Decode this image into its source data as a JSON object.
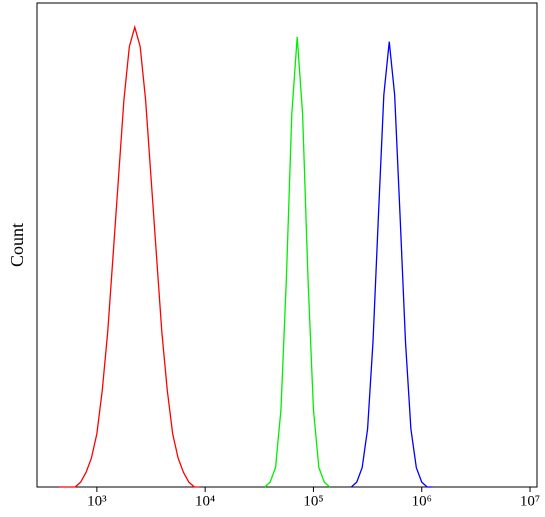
{
  "chart_data": {
    "type": "line",
    "y_label": "Count",
    "x_log": true,
    "xlim": [
      280,
      11600000
    ],
    "ylim": [
      0,
      100
    ],
    "xticks": [
      {
        "value": 1000,
        "label": "10³"
      },
      {
        "value": 10000,
        "label": "10⁴"
      },
      {
        "value": 100000,
        "label": "10⁵"
      },
      {
        "value": 1000000,
        "label": "10⁶"
      },
      {
        "value": 10000000,
        "label": "10⁷"
      }
    ],
    "series": [
      {
        "color": "#ff0000",
        "x": [
          447,
          501,
          562,
          631,
          708,
          794,
          891,
          1000,
          1122,
          1259,
          1413,
          1585,
          1778,
          1995,
          2239,
          2512,
          2818,
          3162,
          3548,
          3981,
          4467,
          5012,
          5623,
          6310,
          7079,
          7943,
          8913
        ],
        "values": [
          0,
          0,
          0,
          0,
          1,
          3,
          6,
          11,
          20,
          32,
          48,
          64,
          80,
          91,
          95,
          91,
          80,
          64,
          48,
          32,
          20,
          11,
          6,
          3,
          1,
          0,
          0
        ]
      },
      {
        "color": "#00ee00",
        "x": [
          35481,
          39811,
          44668,
          50119,
          56234,
          63096,
          70795,
          79433,
          89125,
          100000,
          112202,
          125893,
          141254
        ],
        "values": [
          0,
          1,
          4,
          16,
          43,
          77,
          93,
          77,
          43,
          16,
          4,
          1,
          0
        ]
      },
      {
        "color": "#0000ff",
        "x": [
          223872,
          251189,
          281838,
          316228,
          354813,
          398107,
          446684,
          501187,
          562341,
          630957,
          707946,
          794328,
          891251,
          1000000,
          1122018,
          1258925
        ],
        "values": [
          0,
          1,
          4,
          12,
          30,
          56,
          81,
          92,
          81,
          56,
          30,
          12,
          4,
          1,
          0,
          0
        ]
      }
    ]
  }
}
